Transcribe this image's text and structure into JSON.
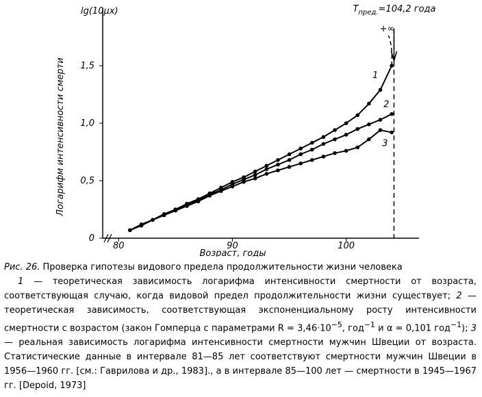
{
  "chart_data": {
    "type": "line",
    "y_title": "lg(10μx)",
    "y_label": "Логарифм интенсивности смерти",
    "x_label": "Возраст, годы",
    "x": [
      81,
      82,
      83,
      84,
      85,
      86,
      87,
      88,
      89,
      90,
      91,
      92,
      93,
      94,
      95,
      96,
      97,
      98,
      99,
      100,
      101,
      102,
      103,
      104
    ],
    "series": [
      {
        "name": "1",
        "color": "#000000",
        "values": [
          0.07,
          0.12,
          0.16,
          0.21,
          0.25,
          0.3,
          0.34,
          0.39,
          0.44,
          0.49,
          0.53,
          0.58,
          0.63,
          0.68,
          0.73,
          0.78,
          0.83,
          0.88,
          0.94,
          1.0,
          1.07,
          1.17,
          1.29,
          1.5
        ]
      },
      {
        "name": "2",
        "color": "#000000",
        "values": [
          0.07,
          0.11,
          0.16,
          0.2,
          0.25,
          0.29,
          0.33,
          0.38,
          0.42,
          0.47,
          0.51,
          0.55,
          0.6,
          0.64,
          0.68,
          0.73,
          0.77,
          0.82,
          0.86,
          0.9,
          0.95,
          0.99,
          1.03,
          1.08
        ]
      },
      {
        "name": "3",
        "color": "#000000",
        "values": [
          0.07,
          0.11,
          0.16,
          0.2,
          0.24,
          0.28,
          0.32,
          0.37,
          0.41,
          0.45,
          0.49,
          0.52,
          0.56,
          0.59,
          0.62,
          0.65,
          0.68,
          0.71,
          0.74,
          0.76,
          0.79,
          0.86,
          0.94,
          0.92
        ]
      }
    ],
    "xlim": [
      78.6,
      106.4
    ],
    "ylim": [
      0,
      2.0
    ],
    "xticks": [
      80,
      90,
      100
    ],
    "yticks": [
      0,
      {
        "value": 0.5,
        "label": "0,5"
      },
      {
        "value": 1.0,
        "label": "1,0"
      },
      {
        "value": 1.5,
        "label": "1,5"
      }
    ],
    "limit_x": 104.2,
    "limit_label": "T",
    "limit_sub": "пред.",
    "limit_rest": "=104,2 года",
    "infinity_label": "+∞"
  },
  "caption": {
    "figure_label": "Рис. 26.",
    "title": "Проверка гипотезы видового предела продолжительности жизни человека",
    "body": [
      {
        "i": "1"
      },
      {
        "t": " — теоретическая зависимость логарифма интенсивности смертности от возраста, соответствующая случаю, когда видовой предел продолжительности жизни существует; "
      },
      {
        "i": "2"
      },
      {
        "t": " — теоретическая зависимость, соответствующая экспоненциальному росту интенсивности смертности с возрастом (закон Гомперца с параметрами R = 3,46·10"
      },
      {
        "sup": "−5"
      },
      {
        "t": ", год"
      },
      {
        "sup": "−1"
      },
      {
        "t": " и α = 0,101 год"
      },
      {
        "sup": "−1"
      },
      {
        "t": "); "
      },
      {
        "i": "3"
      },
      {
        "t": " — реальная зависимость логарифма интенсивности смертности мужчин Швеции от возраста. Статистические данные в интервале 81—85 лет соответствуют смертности мужчин Швеции в 1956—1960 гг. [см.: Гаврилова и др., 1983]., а в интервале 85—100 лет — смертности в 1945—1967 гг. [Depoid, 1973]"
      }
    ]
  }
}
